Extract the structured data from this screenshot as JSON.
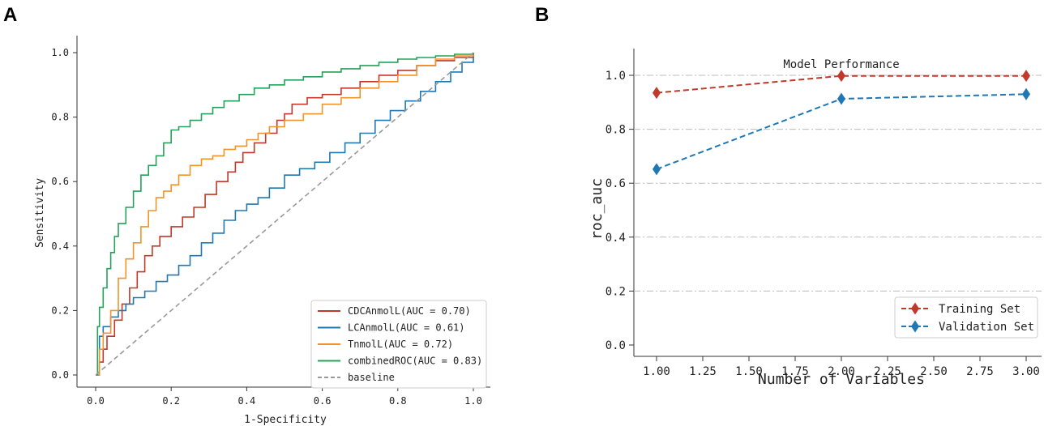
{
  "panels": {
    "a_label": "A",
    "b_label": "B"
  },
  "chart_data": [
    {
      "type": "line",
      "title": "",
      "xlabel": "1-Specificity",
      "ylabel": "Sensitivity",
      "xlim": [
        0,
        1
      ],
      "ylim": [
        0,
        1
      ],
      "xticks": [
        "0.0",
        "0.2",
        "0.4",
        "0.6",
        "0.8",
        "1.0"
      ],
      "yticks": [
        "0.0",
        "0.2",
        "0.4",
        "0.6",
        "0.8",
        "1.0"
      ],
      "legend_position": "lower-right",
      "series": [
        {
          "name": "CDCAnmolL(AUC = 0.70)",
          "color": "#c0392b",
          "x": [
            0,
            0.01,
            0.02,
            0.03,
            0.05,
            0.07,
            0.09,
            0.11,
            0.13,
            0.15,
            0.17,
            0.2,
            0.23,
            0.26,
            0.29,
            0.32,
            0.35,
            0.37,
            0.39,
            0.42,
            0.45,
            0.48,
            0.5,
            0.52,
            0.56,
            0.6,
            0.65,
            0.7,
            0.75,
            0.8,
            0.85,
            0.9,
            0.95,
            1.0
          ],
          "y": [
            0,
            0.04,
            0.08,
            0.12,
            0.17,
            0.22,
            0.27,
            0.32,
            0.37,
            0.4,
            0.43,
            0.46,
            0.49,
            0.52,
            0.56,
            0.6,
            0.63,
            0.66,
            0.69,
            0.72,
            0.75,
            0.79,
            0.81,
            0.84,
            0.86,
            0.87,
            0.89,
            0.91,
            0.93,
            0.945,
            0.96,
            0.975,
            0.985,
            1.0
          ]
        },
        {
          "name": "LCAnmolL(AUC = 0.61)",
          "color": "#1f78b4",
          "x": [
            0,
            0.01,
            0.02,
            0.04,
            0.06,
            0.08,
            0.1,
            0.13,
            0.16,
            0.19,
            0.22,
            0.25,
            0.28,
            0.31,
            0.34,
            0.37,
            0.4,
            0.43,
            0.46,
            0.5,
            0.54,
            0.58,
            0.62,
            0.66,
            0.7,
            0.74,
            0.78,
            0.82,
            0.86,
            0.9,
            0.94,
            0.97,
            1.0
          ],
          "y": [
            0,
            0.12,
            0.15,
            0.18,
            0.2,
            0.22,
            0.24,
            0.26,
            0.29,
            0.31,
            0.34,
            0.37,
            0.41,
            0.44,
            0.48,
            0.51,
            0.53,
            0.55,
            0.58,
            0.62,
            0.64,
            0.66,
            0.69,
            0.72,
            0.75,
            0.79,
            0.82,
            0.85,
            0.88,
            0.91,
            0.94,
            0.97,
            1.0
          ]
        },
        {
          "name": "TnmolL(AUC = 0.72)",
          "color": "#f0932b",
          "x": [
            0,
            0.01,
            0.02,
            0.04,
            0.06,
            0.08,
            0.1,
            0.12,
            0.14,
            0.16,
            0.18,
            0.2,
            0.22,
            0.25,
            0.28,
            0.31,
            0.34,
            0.37,
            0.4,
            0.43,
            0.46,
            0.5,
            0.55,
            0.6,
            0.65,
            0.7,
            0.75,
            0.8,
            0.85,
            0.9,
            0.95,
            1.0
          ],
          "y": [
            0,
            0.08,
            0.13,
            0.2,
            0.3,
            0.36,
            0.41,
            0.46,
            0.51,
            0.55,
            0.57,
            0.59,
            0.62,
            0.65,
            0.67,
            0.68,
            0.7,
            0.71,
            0.73,
            0.75,
            0.77,
            0.79,
            0.81,
            0.84,
            0.86,
            0.89,
            0.91,
            0.93,
            0.96,
            0.98,
            0.99,
            1.0
          ]
        },
        {
          "name": "combinedROC(AUC = 0.83)",
          "color": "#27a05a",
          "x": [
            0,
            0.005,
            0.01,
            0.02,
            0.03,
            0.04,
            0.05,
            0.06,
            0.08,
            0.1,
            0.12,
            0.14,
            0.16,
            0.18,
            0.2,
            0.22,
            0.25,
            0.28,
            0.31,
            0.34,
            0.38,
            0.42,
            0.46,
            0.5,
            0.55,
            0.6,
            0.65,
            0.7,
            0.75,
            0.8,
            0.85,
            0.9,
            0.95,
            1.0
          ],
          "y": [
            0,
            0.15,
            0.21,
            0.27,
            0.33,
            0.38,
            0.43,
            0.47,
            0.52,
            0.57,
            0.62,
            0.65,
            0.68,
            0.72,
            0.76,
            0.77,
            0.79,
            0.81,
            0.83,
            0.85,
            0.87,
            0.89,
            0.9,
            0.915,
            0.925,
            0.94,
            0.95,
            0.96,
            0.97,
            0.98,
            0.985,
            0.99,
            0.995,
            1.0
          ]
        },
        {
          "name": "baseline",
          "color": "#999999",
          "dashed": true,
          "x": [
            0,
            1
          ],
          "y": [
            0,
            1
          ]
        }
      ]
    },
    {
      "type": "line",
      "title": "Model Performance",
      "xlabel": "Number of Variables",
      "ylabel": "roc_auc",
      "xlim": [
        0.9,
        3.05
      ],
      "ylim": [
        0,
        1.05
      ],
      "xticks": [
        "1.00",
        "1.25",
        "1.50",
        "1.75",
        "2.00",
        "2.25",
        "2.50",
        "2.75",
        "3.00"
      ],
      "yticks": [
        "0.0",
        "0.2",
        "0.4",
        "0.6",
        "0.8",
        "1.0"
      ],
      "grid": true,
      "legend_position": "lower-right",
      "x": [
        1,
        2,
        3
      ],
      "series": [
        {
          "name": "Training Set",
          "color": "#c0392b",
          "values": [
            0.935,
            0.998,
            0.998
          ]
        },
        {
          "name": "Validation Set",
          "color": "#1f78b4",
          "values": [
            0.652,
            0.913,
            0.93
          ]
        }
      ]
    }
  ]
}
